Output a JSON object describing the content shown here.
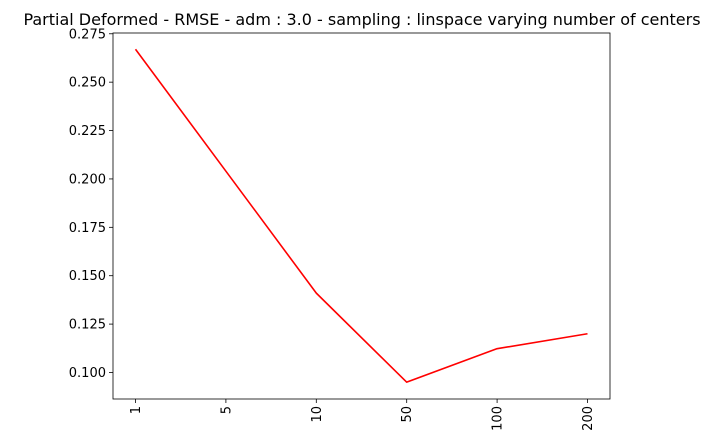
{
  "chart_data": {
    "type": "line",
    "title": "Partial Deformed - RMSE - adm : 3.0 - sampling : linspace varying number of centers",
    "xlabel": "",
    "ylabel": "",
    "categories": [
      "1",
      "5",
      "10",
      "50",
      "100",
      "200"
    ],
    "series": [
      {
        "values": [
          0.267,
          0.204,
          0.141,
          0.095,
          0.1123,
          0.12
        ],
        "color": "#ff0000"
      }
    ],
    "ylim": [
      0.0863,
      0.2754
    ],
    "yticks": [
      "0.100",
      "0.125",
      "0.150",
      "0.175",
      "0.200",
      "0.225",
      "0.250",
      "0.275"
    ],
    "xtick_rotation": "vertical",
    "grid": false,
    "legend": "none"
  }
}
